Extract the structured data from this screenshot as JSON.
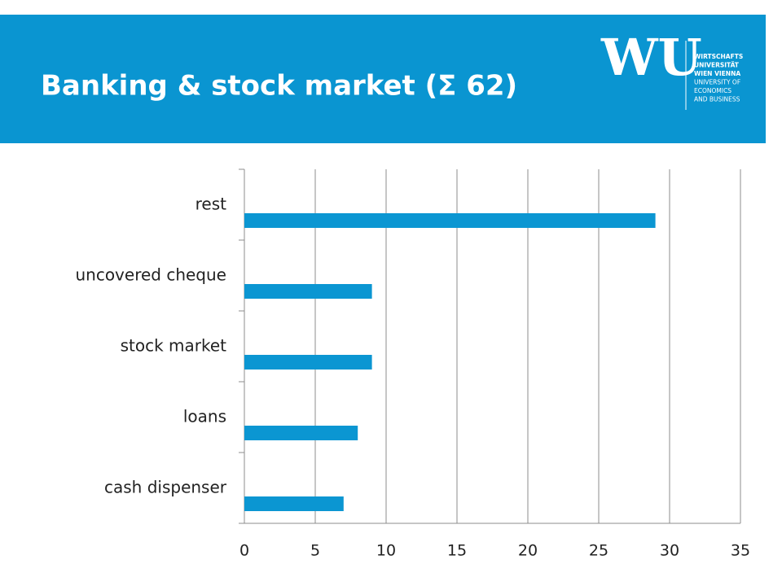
{
  "logo": {
    "mark": "WU",
    "lines": [
      "WIRTSCHAFTS",
      "UNIVERSITÄT",
      "WIEN VIENNA",
      "UNIVERSITY OF",
      "ECONOMICS",
      "AND BUSINESS"
    ]
  },
  "chart_data": {
    "type": "bar",
    "orientation": "horizontal",
    "title": "Banking & stock market (Σ 62)",
    "categories": [
      "rest",
      "uncovered cheque",
      "stock market",
      "loans",
      "cash dispenser"
    ],
    "values": [
      29,
      9,
      9,
      8,
      7
    ],
    "color": "#0b96d2",
    "xlim": [
      0,
      35
    ],
    "xticks": [
      0,
      5,
      10,
      15,
      20,
      25,
      30,
      35
    ],
    "grid": true
  }
}
